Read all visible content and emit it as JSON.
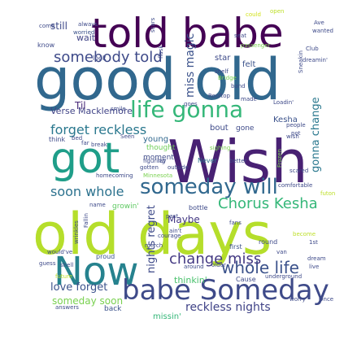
{
  "word_cloud": {
    "words": [
      {
        "text": "told babe",
        "color": "#440154"
      },
      {
        "text": "good old",
        "color": "#31688e"
      },
      {
        "text": "Wish",
        "color": "#482173"
      },
      {
        "text": "old days",
        "color": "#b5de2b"
      },
      {
        "text": "got",
        "color": "#1f9e89"
      },
      {
        "text": "Now",
        "color": "#26828e"
      },
      {
        "text": "babe Someday",
        "color": "#3e4a89"
      },
      {
        "text": "life gonna",
        "color": "#35b779"
      },
      {
        "text": "someday will",
        "color": "#31688e"
      },
      {
        "text": "Chorus Kesha",
        "color": "#35b779"
      },
      {
        "text": "whole life",
        "color": "#3b528b"
      },
      {
        "text": "change miss",
        "color": "#443a83"
      },
      {
        "text": "somebody told",
        "color": "#3e4a89"
      },
      {
        "text": "forget reckless",
        "color": "#2a788e"
      },
      {
        "text": "soon whole",
        "color": "#2c728e"
      },
      {
        "text": "love forget",
        "color": "#3b528b"
      },
      {
        "text": "reckless nights",
        "color": "#404387"
      },
      {
        "text": "someday soon",
        "color": "#7ad151"
      },
      {
        "text": "miss magic",
        "color": "#3b528b"
      },
      {
        "text": "nights regret",
        "color": "#3e4a89"
      },
      {
        "text": "gonna change",
        "color": "#2a788e"
      },
      {
        "text": "Verse Macklemore",
        "color": "#414487"
      },
      {
        "text": "Til",
        "color": "#482878"
      },
      {
        "text": "still",
        "color": "#3e4a89"
      },
      {
        "text": "Maybe",
        "color": "#443983"
      },
      {
        "text": "thinkin'",
        "color": "#4ac16d"
      },
      {
        "text": "wait",
        "color": "#414487"
      },
      {
        "text": "star",
        "color": "#3e4a89"
      },
      {
        "text": "felt",
        "color": "#3b528b"
      },
      {
        "text": "bout",
        "color": "#3e4a89"
      },
      {
        "text": "gone",
        "color": "#3e4a89"
      },
      {
        "text": "Kesha",
        "color": "#3b528b"
      },
      {
        "text": "young",
        "color": "#31688e"
      },
      {
        "text": "thought",
        "color": "#6ece58"
      },
      {
        "text": "moment",
        "color": "#3e4a89"
      },
      {
        "text": "Never",
        "color": "#2c728e"
      },
      {
        "text": "missin'",
        "color": "#35b779"
      },
      {
        "text": "back",
        "color": "#3b528b"
      },
      {
        "text": "growin'",
        "color": "#5ec962"
      },
      {
        "text": "bottle",
        "color": "#3e4a89"
      },
      {
        "text": "Cause",
        "color": "#3e4a89"
      },
      {
        "text": "first",
        "color": "#3b528b"
      },
      {
        "text": "round",
        "color": "#3e4a89"
      },
      {
        "text": "proud",
        "color": "#3b528b"
      },
      {
        "text": "look",
        "color": "#3e4a89"
      },
      {
        "text": "know",
        "color": "#3e4a89"
      },
      {
        "text": "come",
        "color": "#3e4a89"
      },
      {
        "text": "always",
        "color": "#3e4a89"
      },
      {
        "text": "worried",
        "color": "#3b528b"
      },
      {
        "text": "scars",
        "color": "#3e4a89"
      },
      {
        "text": "flask",
        "color": "#3e4a89"
      },
      {
        "text": "passenger",
        "color": "#7ad151"
      },
      {
        "text": "seat",
        "color": "#3e4a89"
      },
      {
        "text": "could",
        "color": "#d2e21b"
      },
      {
        "text": "open",
        "color": "#bddf26"
      },
      {
        "text": "Ave",
        "color": "#3e4a89"
      },
      {
        "text": "wanted",
        "color": "#3e4a89"
      },
      {
        "text": "Club",
        "color": "#3e4a89"
      },
      {
        "text": "Sneakin",
        "color": "#3e4a89"
      },
      {
        "text": "dreamin'",
        "color": "#3e4a89"
      },
      {
        "text": "shelf",
        "color": "#3e4a89"
      },
      {
        "text": "Bridge",
        "color": "#7ad151"
      },
      {
        "text": "band",
        "color": "#3e4a89"
      },
      {
        "text": "Rooftop",
        "color": "#3e4a89"
      },
      {
        "text": "made",
        "color": "#3e4a89"
      },
      {
        "text": "Loadin'",
        "color": "#3e4a89"
      },
      {
        "text": "goes",
        "color": "#3e4a89"
      },
      {
        "text": "smile",
        "color": "#3e4a89"
      },
      {
        "text": "Seen",
        "color": "#3e4a89"
      },
      {
        "text": "sighing",
        "color": "#7ad151"
      },
      {
        "text": "people",
        "color": "#3e4a89"
      },
      {
        "text": "wish",
        "color": "#3e4a89"
      },
      {
        "text": "pot",
        "color": "#3e4a89"
      },
      {
        "text": "think",
        "color": "#3e4a89"
      },
      {
        "text": "bed",
        "color": "#3e4a89"
      },
      {
        "text": "far",
        "color": "#3e4a89"
      },
      {
        "text": "break",
        "color": "#3e4a89"
      },
      {
        "text": "figuring",
        "color": "#3e4a89"
      },
      {
        "text": "lay",
        "color": "#3e4a89"
      },
      {
        "text": "gotten",
        "color": "#3e4a89"
      },
      {
        "text": "outside",
        "color": "#3e4a89"
      },
      {
        "text": "better",
        "color": "#3e4a89"
      },
      {
        "text": "Frozen",
        "color": "#7ad151"
      },
      {
        "text": "scared",
        "color": "#3e4a89"
      },
      {
        "text": "future",
        "color": "#bddf26"
      },
      {
        "text": "homecoming",
        "color": "#3e4a89"
      },
      {
        "text": "Minnesota",
        "color": "#7ad151"
      },
      {
        "text": "comfortable",
        "color": "#3e4a89"
      },
      {
        "text": "name",
        "color": "#3e4a89"
      },
      {
        "text": "past",
        "color": "#3e4a89"
      },
      {
        "text": "fans",
        "color": "#3e4a89"
      },
      {
        "text": "Fallin",
        "color": "#3e4a89"
      },
      {
        "text": "wrinkles",
        "color": "#3e4a89"
      },
      {
        "text": "courage",
        "color": "#3e4a89"
      },
      {
        "text": "ain't",
        "color": "#3e4a89"
      },
      {
        "text": "become",
        "color": "#bddf26"
      },
      {
        "text": "1st",
        "color": "#3e4a89"
      },
      {
        "text": "would've",
        "color": "#3e4a89"
      },
      {
        "text": "guess",
        "color": "#3e4a89"
      },
      {
        "text": "shell",
        "color": "#3e4a89"
      },
      {
        "text": "merch",
        "color": "#3e4a89"
      },
      {
        "text": "van",
        "color": "#3e4a89"
      },
      {
        "text": "dream",
        "color": "#3e4a89"
      },
      {
        "text": "around",
        "color": "#3e4a89"
      },
      {
        "text": "older",
        "color": "#3e4a89"
      },
      {
        "text": "underground",
        "color": "#3e4a89"
      },
      {
        "text": "worry",
        "color": "#3e4a89"
      },
      {
        "text": "answers",
        "color": "#3e4a89"
      },
      {
        "text": "Once",
        "color": "#3e4a89"
      },
      {
        "text": "futon",
        "color": "#bddf26"
      },
      {
        "text": "live",
        "color": "#3e4a89"
      }
    ]
  }
}
